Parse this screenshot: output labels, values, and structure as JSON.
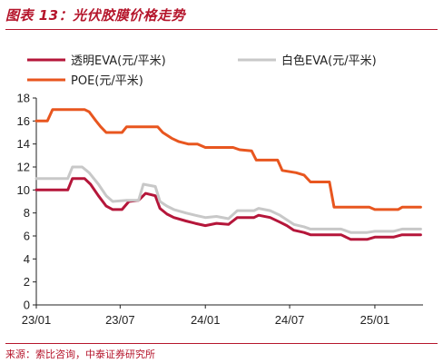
{
  "header": {
    "title": "图表 13：光伏胶膜价格走势"
  },
  "footer": {
    "source": "来源：索比咨询，中泰证券研究所"
  },
  "colors": {
    "transparent_eva": "#b5163a",
    "white_eva": "#c8c8c8",
    "poe": "#e8561f",
    "accent": "#b5162c"
  },
  "chart_data": {
    "type": "line",
    "title": "",
    "xlabel": "",
    "ylabel": "",
    "x_ticks": [
      "23/01",
      "23/07",
      "24/01",
      "24/07",
      "25/01"
    ],
    "y_ticks": [
      "0",
      "2",
      "4",
      "6",
      "8",
      "10",
      "12",
      "14",
      "16",
      "18"
    ],
    "ylim": [
      0,
      18
    ],
    "xlim": [
      "2023-01-01",
      "2025-04-15"
    ],
    "legend_placement": "top-left",
    "grid": false,
    "series": [
      {
        "name": "透明EVA(元/平米)",
        "color": "#b5163a",
        "points": [
          [
            "2023-01-01",
            10.0
          ],
          [
            "2023-03-10",
            10.0
          ],
          [
            "2023-03-20",
            11.0
          ],
          [
            "2023-04-15",
            11.0
          ],
          [
            "2023-04-28",
            10.5
          ],
          [
            "2023-05-15",
            9.5
          ],
          [
            "2023-06-01",
            8.6
          ],
          [
            "2023-06-15",
            8.3
          ],
          [
            "2023-07-05",
            8.3
          ],
          [
            "2023-07-20",
            9.0
          ],
          [
            "2023-08-10",
            9.1
          ],
          [
            "2023-08-25",
            9.7
          ],
          [
            "2023-09-15",
            9.5
          ],
          [
            "2023-09-25",
            8.4
          ],
          [
            "2023-10-10",
            7.9
          ],
          [
            "2023-10-25",
            7.6
          ],
          [
            "2023-11-20",
            7.3
          ],
          [
            "2023-12-10",
            7.1
          ],
          [
            "2024-01-01",
            6.9
          ],
          [
            "2024-01-25",
            7.1
          ],
          [
            "2024-02-20",
            7.0
          ],
          [
            "2024-03-10",
            7.6
          ],
          [
            "2024-04-15",
            7.6
          ],
          [
            "2024-04-25",
            7.8
          ],
          [
            "2024-05-20",
            7.6
          ],
          [
            "2024-06-10",
            7.2
          ],
          [
            "2024-06-25",
            6.9
          ],
          [
            "2024-07-10",
            6.5
          ],
          [
            "2024-08-01",
            6.3
          ],
          [
            "2024-08-15",
            6.1
          ],
          [
            "2024-09-15",
            6.1
          ],
          [
            "2024-10-20",
            6.1
          ],
          [
            "2024-11-10",
            5.7
          ],
          [
            "2024-12-15",
            5.7
          ],
          [
            "2025-01-01",
            5.9
          ],
          [
            "2025-02-10",
            5.9
          ],
          [
            "2025-03-01",
            6.1
          ],
          [
            "2025-04-10",
            6.1
          ]
        ]
      },
      {
        "name": "白色EVA(元/平米)",
        "color": "#c8c8c8",
        "points": [
          [
            "2023-01-01",
            11.0
          ],
          [
            "2023-03-10",
            11.0
          ],
          [
            "2023-03-20",
            12.0
          ],
          [
            "2023-04-10",
            12.0
          ],
          [
            "2023-04-25",
            11.5
          ],
          [
            "2023-05-15",
            10.5
          ],
          [
            "2023-06-01",
            9.5
          ],
          [
            "2023-06-15",
            9.0
          ],
          [
            "2023-07-15",
            9.1
          ],
          [
            "2023-08-10",
            9.1
          ],
          [
            "2023-08-20",
            10.5
          ],
          [
            "2023-09-15",
            10.3
          ],
          [
            "2023-09-25",
            9.0
          ],
          [
            "2023-10-10",
            8.6
          ],
          [
            "2023-10-25",
            8.3
          ],
          [
            "2023-11-20",
            8.0
          ],
          [
            "2023-12-10",
            7.8
          ],
          [
            "2024-01-01",
            7.6
          ],
          [
            "2024-01-25",
            7.7
          ],
          [
            "2024-02-20",
            7.5
          ],
          [
            "2024-03-10",
            8.2
          ],
          [
            "2024-04-15",
            8.2
          ],
          [
            "2024-04-25",
            8.4
          ],
          [
            "2024-05-20",
            8.2
          ],
          [
            "2024-06-10",
            7.8
          ],
          [
            "2024-06-25",
            7.4
          ],
          [
            "2024-07-10",
            7.0
          ],
          [
            "2024-08-01",
            6.8
          ],
          [
            "2024-08-15",
            6.6
          ],
          [
            "2024-09-15",
            6.6
          ],
          [
            "2024-10-20",
            6.6
          ],
          [
            "2024-11-10",
            6.3
          ],
          [
            "2024-12-15",
            6.3
          ],
          [
            "2025-01-01",
            6.4
          ],
          [
            "2025-02-10",
            6.4
          ],
          [
            "2025-03-01",
            6.6
          ],
          [
            "2025-04-10",
            6.6
          ]
        ]
      },
      {
        "name": "POE(元/平米)",
        "color": "#e8561f",
        "points": [
          [
            "2023-01-01",
            16.0
          ],
          [
            "2023-01-25",
            16.0
          ],
          [
            "2023-02-05",
            17.0
          ],
          [
            "2023-04-15",
            17.0
          ],
          [
            "2023-04-25",
            16.8
          ],
          [
            "2023-05-10",
            16.0
          ],
          [
            "2023-05-20",
            15.5
          ],
          [
            "2023-06-01",
            15.0
          ],
          [
            "2023-06-20",
            15.0
          ],
          [
            "2023-07-05",
            15.0
          ],
          [
            "2023-07-15",
            15.5
          ],
          [
            "2023-09-20",
            15.5
          ],
          [
            "2023-10-01",
            15.0
          ],
          [
            "2023-10-20",
            14.5
          ],
          [
            "2023-11-05",
            14.2
          ],
          [
            "2023-11-25",
            14.0
          ],
          [
            "2023-12-15",
            14.0
          ],
          [
            "2024-01-01",
            13.7
          ],
          [
            "2024-03-01",
            13.7
          ],
          [
            "2024-03-15",
            13.5
          ],
          [
            "2024-04-10",
            13.4
          ],
          [
            "2024-04-20",
            12.6
          ],
          [
            "2024-06-05",
            12.6
          ],
          [
            "2024-06-15",
            11.7
          ],
          [
            "2024-07-15",
            11.5
          ],
          [
            "2024-08-01",
            11.3
          ],
          [
            "2024-08-15",
            10.7
          ],
          [
            "2024-09-25",
            10.7
          ],
          [
            "2024-10-05",
            8.5
          ],
          [
            "2024-12-20",
            8.5
          ],
          [
            "2025-01-01",
            8.3
          ],
          [
            "2025-02-20",
            8.3
          ],
          [
            "2025-03-01",
            8.5
          ],
          [
            "2025-04-10",
            8.5
          ]
        ]
      }
    ]
  }
}
